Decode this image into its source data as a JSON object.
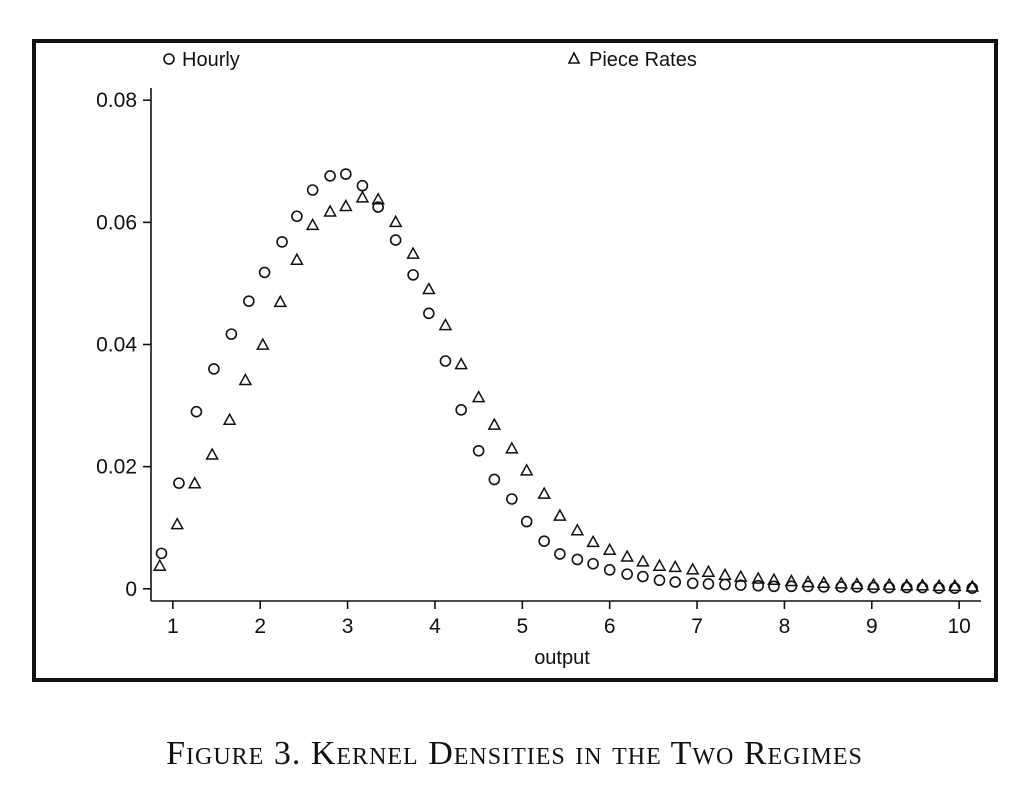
{
  "figure": {
    "caption": "Figure 3. Kernel Densities in the Two Regimes"
  },
  "chart_data": {
    "type": "scatter",
    "title": "",
    "xlabel": "output",
    "ylabel": "",
    "xlim": [
      0.75,
      10.25
    ],
    "ylim": [
      -0.002,
      0.082
    ],
    "xticks": [
      1,
      2,
      3,
      4,
      5,
      6,
      7,
      8,
      9,
      10
    ],
    "xtick_labels": [
      "1",
      "2",
      "3",
      "4",
      "5",
      "6",
      "7",
      "8",
      "9",
      "10"
    ],
    "yticks": [
      0,
      0.02,
      0.04,
      0.06,
      0.08
    ],
    "ytick_labels": [
      "0",
      "0.02",
      "0.04",
      "0.06",
      "0.08"
    ],
    "grid": false,
    "legend_position": "top",
    "series": [
      {
        "name": "Hourly",
        "marker": "circle",
        "x": [
          0.87,
          1.07,
          1.27,
          1.47,
          1.67,
          1.87,
          2.05,
          2.25,
          2.42,
          2.6,
          2.8,
          2.98,
          3.17,
          3.35,
          3.55,
          3.75,
          3.93,
          4.12,
          4.3,
          4.5,
          4.68,
          4.88,
          5.05,
          5.25,
          5.43,
          5.63,
          5.81,
          6.0,
          6.2,
          6.38,
          6.57,
          6.75,
          6.95,
          7.13,
          7.32,
          7.5,
          7.7,
          7.88,
          8.08,
          8.27,
          8.45,
          8.65,
          8.83,
          9.02,
          9.2,
          9.4,
          9.58,
          9.77,
          9.95,
          10.15
        ],
        "y": [
          0.0058,
          0.0173,
          0.029,
          0.036,
          0.0417,
          0.0471,
          0.0518,
          0.0568,
          0.061,
          0.0653,
          0.0676,
          0.0679,
          0.066,
          0.0625,
          0.0571,
          0.0514,
          0.0451,
          0.0373,
          0.0293,
          0.0226,
          0.0179,
          0.0147,
          0.011,
          0.0078,
          0.0057,
          0.0048,
          0.0041,
          0.0031,
          0.0024,
          0.002,
          0.0014,
          0.0011,
          0.0009,
          0.0008,
          0.0007,
          0.0006,
          0.0005,
          0.0004,
          0.0004,
          0.0004,
          0.0003,
          0.0003,
          0.0003,
          0.0002,
          0.0002,
          0.0002,
          0.0002,
          0.0001,
          0.0001,
          0.0001
        ]
      },
      {
        "name": "Piece Rates",
        "marker": "triangle",
        "x": [
          0.85,
          1.05,
          1.25,
          1.45,
          1.65,
          1.83,
          2.03,
          2.23,
          2.42,
          2.6,
          2.8,
          2.98,
          3.17,
          3.35,
          3.55,
          3.75,
          3.93,
          4.12,
          4.3,
          4.5,
          4.68,
          4.88,
          5.05,
          5.25,
          5.43,
          5.63,
          5.81,
          6.0,
          6.2,
          6.38,
          6.57,
          6.75,
          6.95,
          7.13,
          7.32,
          7.5,
          7.7,
          7.88,
          8.08,
          8.27,
          8.45,
          8.65,
          8.83,
          9.02,
          9.2,
          9.4,
          9.58,
          9.77,
          9.95,
          10.15
        ],
        "y": [
          0.0037,
          0.0105,
          0.0172,
          0.0219,
          0.0276,
          0.0341,
          0.0399,
          0.0469,
          0.0538,
          0.0595,
          0.0617,
          0.0626,
          0.064,
          0.0637,
          0.06,
          0.0548,
          0.049,
          0.0431,
          0.0367,
          0.0313,
          0.0268,
          0.0229,
          0.0193,
          0.0155,
          0.0119,
          0.0095,
          0.0076,
          0.0063,
          0.0052,
          0.0044,
          0.0037,
          0.0035,
          0.0031,
          0.0027,
          0.0022,
          0.0019,
          0.0016,
          0.0014,
          0.0012,
          0.001,
          0.0009,
          0.0008,
          0.0007,
          0.0006,
          0.0006,
          0.0005,
          0.0005,
          0.0004,
          0.0004,
          0.0003
        ]
      }
    ]
  }
}
